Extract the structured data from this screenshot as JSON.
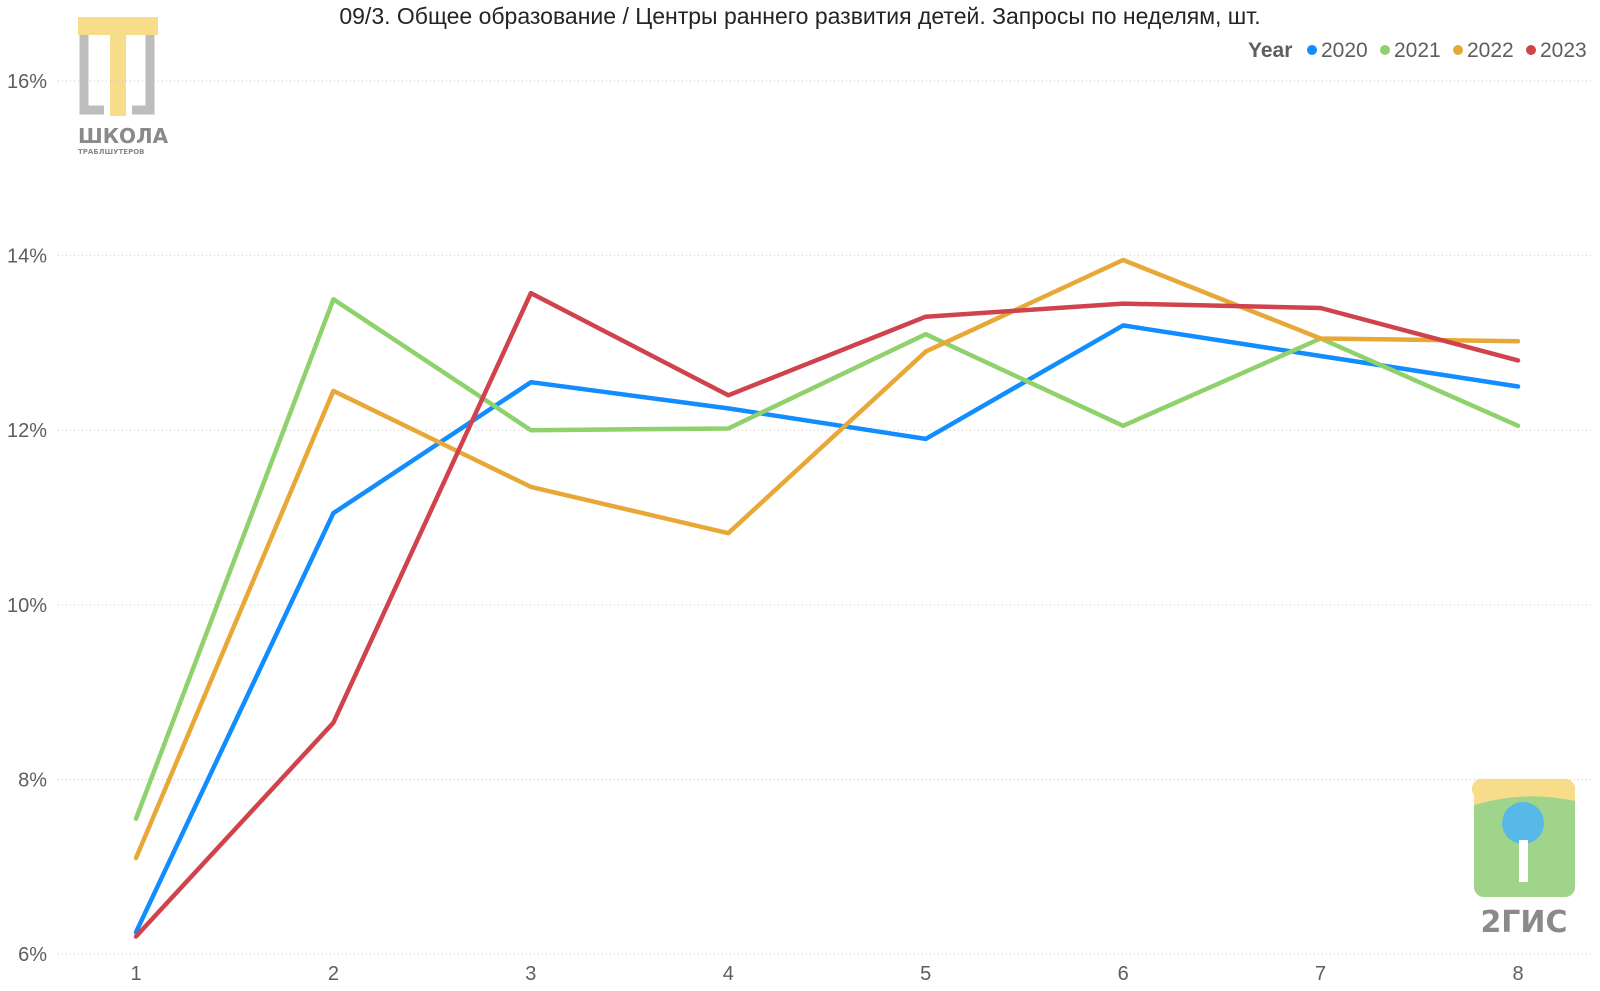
{
  "chart_data": {
    "type": "line",
    "title": "09/3. Общее образование / Центры раннего развития детей. Запросы по неделям, шт.",
    "xlabel": "",
    "ylabel": "",
    "x": [
      1,
      2,
      3,
      4,
      5,
      6,
      7,
      8
    ],
    "ylim": [
      6,
      16
    ],
    "yticks": [
      "6%",
      "8%",
      "10%",
      "12%",
      "14%",
      "16%"
    ],
    "ytick_values": [
      6,
      8,
      10,
      12,
      14,
      16
    ],
    "grid": true,
    "legend": {
      "title": "Year",
      "placement": "top-right"
    },
    "series": [
      {
        "name": "2020",
        "color": "#118DFF",
        "values": [
          6.25,
          11.05,
          12.55,
          12.25,
          11.9,
          13.2,
          12.85,
          12.5
        ]
      },
      {
        "name": "2021",
        "color": "#8FD16C",
        "values": [
          7.55,
          13.5,
          12.0,
          12.02,
          13.1,
          12.05,
          13.05,
          12.05
        ]
      },
      {
        "name": "2022",
        "color": "#E8A838",
        "values": [
          7.1,
          12.45,
          11.35,
          10.82,
          12.9,
          13.95,
          13.05,
          13.02
        ]
      },
      {
        "name": "2023",
        "color": "#D0434D",
        "values": [
          6.2,
          8.65,
          13.57,
          12.4,
          13.3,
          13.45,
          13.4,
          12.8
        ]
      }
    ]
  },
  "logos": {
    "left": {
      "line1": "ШКОЛА",
      "line2": "ТРАБЛШУТЕРОВ"
    },
    "right": {
      "text": "2ГИС"
    }
  }
}
